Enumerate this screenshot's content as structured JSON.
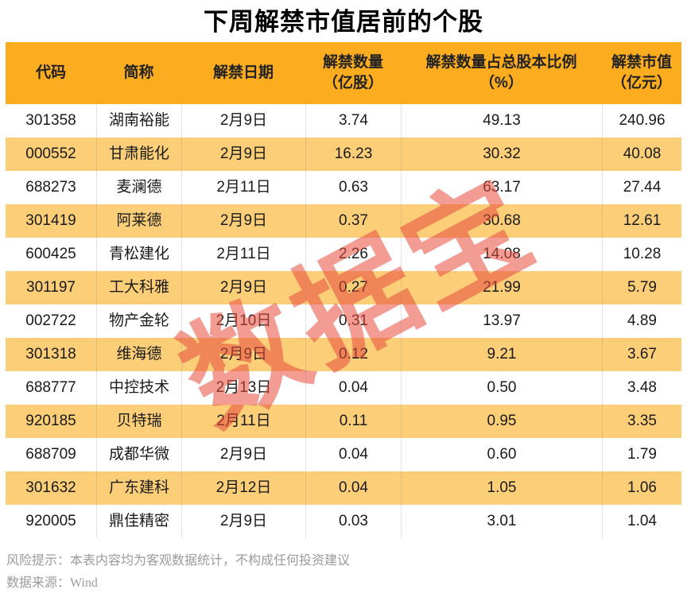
{
  "title": "下周解禁市值居前的个股",
  "watermark": "数据宝",
  "colors": {
    "header_bg": "#FBAC1F",
    "stripe_bg": "#FCCE78",
    "row_bg": "#FFFFFF",
    "watermark_red": "#E84C3D",
    "footer_gray": "#9B9B9B"
  },
  "footer": {
    "risk": "风险提示：本表内容均为客观数据统计，不构成任何投资建议",
    "source": "数据来源：Wind"
  },
  "chart_data": {
    "type": "table",
    "title": "下周解禁市值居前的个股",
    "columns": [
      {
        "label": "代码",
        "sub": ""
      },
      {
        "label": "简称",
        "sub": ""
      },
      {
        "label": "解禁日期",
        "sub": ""
      },
      {
        "label": "解禁数量",
        "sub": "（亿股）"
      },
      {
        "label": "解禁数量占总股本比例",
        "sub": "（%）"
      },
      {
        "label": "解禁市值",
        "sub": "（亿元）"
      }
    ],
    "rows": [
      [
        "301358",
        "湖南裕能",
        "2月9日",
        "3.74",
        "49.13",
        "240.96"
      ],
      [
        "000552",
        "甘肃能化",
        "2月9日",
        "16.23",
        "30.32",
        "40.08"
      ],
      [
        "688273",
        "麦澜德",
        "2月11日",
        "0.63",
        "63.17",
        "27.44"
      ],
      [
        "301419",
        "阿莱德",
        "2月9日",
        "0.37",
        "30.68",
        "12.61"
      ],
      [
        "600425",
        "青松建化",
        "2月11日",
        "2.26",
        "14.08",
        "10.28"
      ],
      [
        "301197",
        "工大科雅",
        "2月9日",
        "0.27",
        "21.99",
        "5.79"
      ],
      [
        "002722",
        "物产金轮",
        "2月10日",
        "0.31",
        "13.97",
        "4.89"
      ],
      [
        "301318",
        "维海德",
        "2月9日",
        "0.12",
        "9.21",
        "3.67"
      ],
      [
        "688777",
        "中控技术",
        "2月13日",
        "0.04",
        "0.50",
        "3.48"
      ],
      [
        "920185",
        "贝特瑞",
        "2月11日",
        "0.11",
        "0.95",
        "3.35"
      ],
      [
        "688709",
        "成都华微",
        "2月9日",
        "0.04",
        "0.60",
        "1.79"
      ],
      [
        "301632",
        "广东建科",
        "2月12日",
        "0.04",
        "1.05",
        "1.06"
      ],
      [
        "920005",
        "鼎佳精密",
        "2月9日",
        "0.03",
        "3.01",
        "1.04"
      ]
    ]
  }
}
